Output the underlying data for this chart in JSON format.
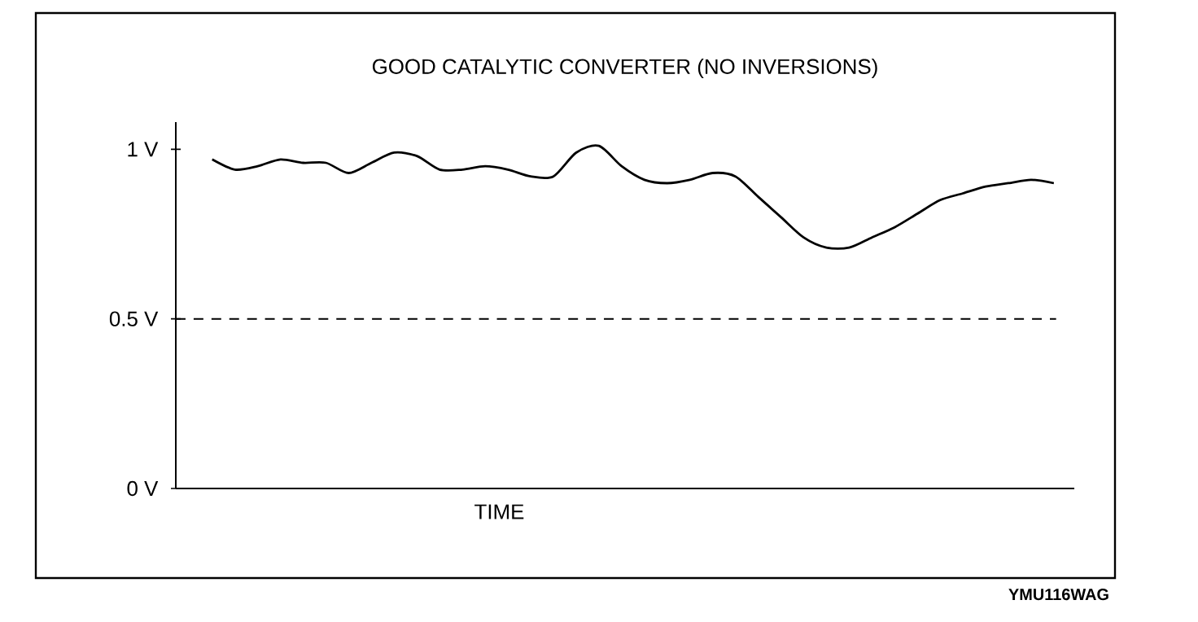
{
  "chart_data": {
    "type": "line",
    "title": "GOOD CATALYTIC CONVERTER (NO INVERSIONS)",
    "xlabel": "TIME",
    "categories": [
      null,
      null,
      null,
      null,
      null,
      null,
      null,
      null,
      null,
      null,
      null,
      null,
      null,
      null,
      null,
      null,
      null,
      null,
      null,
      null,
      null,
      null,
      null,
      null,
      null,
      null,
      null,
      null,
      null,
      null,
      null,
      null,
      null,
      null,
      null,
      null,
      null,
      null
    ],
    "series": [
      {
        "color": "#000000",
        "values": [
          0.97,
          0.94,
          0.95,
          0.97,
          0.96,
          0.96,
          0.93,
          0.96,
          0.99,
          0.98,
          0.94,
          0.94,
          0.95,
          0.94,
          0.92,
          0.92,
          0.99,
          1.01,
          0.95,
          0.91,
          0.9,
          0.91,
          0.93,
          0.92,
          0.86,
          0.8,
          0.74,
          0.71,
          0.71,
          0.74,
          0.77,
          0.81,
          0.85,
          0.87,
          0.89,
          0.9,
          0.91,
          0.9
        ]
      }
    ],
    "ylim": [
      0,
      1.08
    ],
    "yticks": [
      {
        "value": 0,
        "label": "0 V"
      },
      {
        "value": 0.5,
        "label": "0.5 V"
      },
      {
        "value": 1,
        "label": "1 V"
      }
    ],
    "ref_lines": [
      {
        "axis": "y",
        "value": 0.5,
        "line_style": "dashed"
      }
    ],
    "tick_labels": "y",
    "grid": false,
    "marker": "none",
    "line_style": "solid",
    "annotations": [
      "YMU116WAG"
    ]
  }
}
